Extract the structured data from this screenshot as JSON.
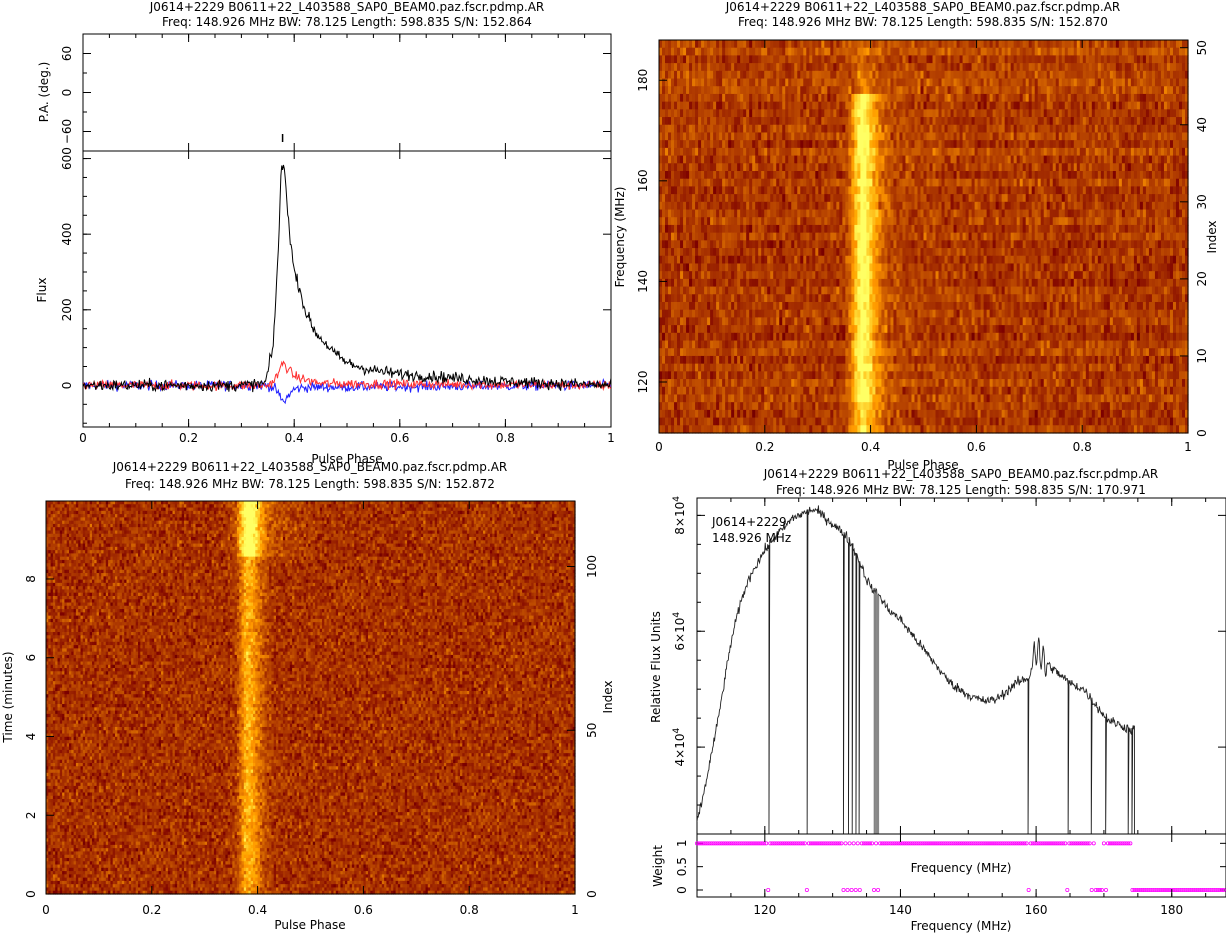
{
  "chart_data": [
    {
      "id": "profile",
      "type": "line",
      "title": "J0614+2229  B0611+22_L403588_SAP0_BEAM0.paz.fscr.pdmp.AR",
      "subtitle": "Freq: 148.926 MHz BW: 78.125 Length: 598.835 S/N: 152.864",
      "xlabel": "Pulse Phase",
      "xlim": [
        0,
        1
      ],
      "xticks": [
        "0",
        "0.2",
        "0.4",
        "0.6",
        "0.8",
        "1"
      ],
      "pa": {
        "ylabel": "P.A. (deg.)",
        "ylim": [
          -90,
          90
        ],
        "yticks": [
          "−60",
          "0",
          "60"
        ],
        "points": [
          [
            0.378,
            -70
          ]
        ]
      },
      "flux": {
        "ylabel": "Flux",
        "ylim": [
          -110,
          620
        ],
        "yticks": [
          "0",
          "200",
          "400",
          "600"
        ],
        "series": [
          {
            "color": "#000000",
            "x": [
              0,
              0.3,
              0.345,
              0.36,
              0.37,
              0.375,
              0.38,
              0.385,
              0.39,
              0.4,
              0.41,
              0.42,
              0.44,
              0.46,
              0.48,
              0.5,
              0.52,
              0.55,
              0.6,
              0.7,
              0.8,
              1
            ],
            "values": [
              0,
              0,
              5,
              100,
              360,
              560,
              585,
              520,
              420,
              300,
              260,
              200,
              140,
              110,
              80,
              60,
              50,
              40,
              30,
              20,
              10,
              0
            ]
          },
          {
            "color": "#ff3030",
            "x": [
              0,
              0.35,
              0.36,
              0.37,
              0.375,
              0.38,
              0.39,
              0.4,
              0.42,
              0.45,
              1
            ],
            "values": [
              0,
              0,
              10,
              30,
              50,
              60,
              40,
              25,
              15,
              5,
              0
            ]
          },
          {
            "color": "#2020ff",
            "x": [
              0,
              0.35,
              0.365,
              0.375,
              0.38,
              0.39,
              0.4,
              0.42,
              1
            ],
            "values": [
              0,
              0,
              -10,
              -35,
              -45,
              -25,
              -10,
              -5,
              0
            ]
          }
        ]
      }
    },
    {
      "id": "freq-phase",
      "type": "heatmap",
      "title": "J0614+2229  B0611+22_L403588_SAP0_BEAM0.paz.fscr.pdmp.AR",
      "subtitle": "Freq: 148.926 MHz BW: 78.125 Length: 598.835 S/N: 152.870",
      "xlabel": "Pulse Phase",
      "ylabel": "Frequency (MHz)",
      "y2label": "Index",
      "xlim": [
        0,
        1
      ],
      "ylim": [
        109.86,
        188.0
      ],
      "y2lim": [
        0,
        51
      ],
      "xticks": [
        "0",
        "0.2",
        "0.4",
        "0.6",
        "0.8",
        "1"
      ],
      "yticks": [
        "120",
        "140",
        "160",
        "180"
      ],
      "y2ticks": [
        "0",
        "10",
        "20",
        "30",
        "40",
        "50"
      ],
      "pulse_center": 0.38,
      "bright_until_mhz": 177
    },
    {
      "id": "time-phase",
      "type": "heatmap",
      "title": "J0614+2229  B0611+22_L403588_SAP0_BEAM0.paz.fscr.pdmp.AR",
      "subtitle": "Freq: 148.926 MHz BW: 78.125 Length: 598.835 S/N: 152.872",
      "xlabel": "Pulse Phase",
      "ylabel": "Time (minutes)",
      "y2label": "Index",
      "xlim": [
        0,
        1
      ],
      "ylim": [
        0,
        9.98
      ],
      "y2lim": [
        0,
        120
      ],
      "xticks": [
        "0",
        "0.2",
        "0.4",
        "0.6",
        "0.8",
        "1"
      ],
      "yticks": [
        "0",
        "2",
        "4",
        "6",
        "8"
      ],
      "y2ticks": [
        "0",
        "50",
        "100"
      ],
      "pulse_center": 0.38,
      "flare_minutes": [
        8.55,
        9.98
      ]
    },
    {
      "id": "bandpass",
      "type": "line",
      "title": "J0614+2229  B0611+22_L403588_SAP0_BEAM0.paz.fscr.pdmp.AR",
      "subtitle": "Freq: 148.926 MHz BW: 78.125 Length: 598.835 S/N: 170.971",
      "xlabel": "Frequency (MHz)",
      "xlim": [
        110,
        188
      ],
      "xticks": [
        "120",
        "140",
        "160",
        "180"
      ],
      "annotation": [
        "J0614+2229",
        "148.926  MHz"
      ],
      "spectrum": {
        "ylabel": "Relative Flux Units",
        "ylim": [
          25000,
          83000
        ],
        "yticks": [
          {
            "value": 40000,
            "mant": "4×10",
            "exp": "4"
          },
          {
            "value": 60000,
            "mant": "6×10",
            "exp": "4"
          },
          {
            "value": 80000,
            "mant": "8×10",
            "exp": "4"
          }
        ],
        "freq": [
          110,
          111,
          112,
          113,
          114,
          115,
          116,
          117,
          118,
          119,
          120,
          121,
          122,
          123,
          124,
          125,
          126,
          127,
          128,
          129,
          130,
          131,
          132,
          133,
          134,
          135,
          136,
          137,
          138,
          139,
          140,
          141,
          142,
          143,
          144,
          145,
          146,
          147,
          148,
          149,
          150,
          151,
          152,
          153,
          154,
          155,
          156,
          157,
          158,
          159,
          160,
          161,
          162,
          163,
          164,
          165,
          166,
          167,
          168,
          169,
          170,
          171,
          172,
          173,
          174
        ],
        "values": [
          27000,
          32000,
          38000,
          44000,
          51000,
          58000,
          63000,
          67000,
          70000,
          72000,
          74000,
          75500,
          77000,
          78000,
          79500,
          80000,
          80500,
          81000,
          80500,
          79500,
          78500,
          77500,
          76500,
          74500,
          72000,
          69000,
          67000,
          66000,
          64000,
          63000,
          62000,
          60500,
          59000,
          57500,
          56000,
          54500,
          53000,
          51500,
          50500,
          49800,
          49000,
          48500,
          48000,
          48000,
          48200,
          49000,
          50000,
          51000,
          51500,
          52000,
          57000,
          55000,
          54000,
          53000,
          52000,
          51000,
          50500,
          50000,
          48500,
          47000,
          45500,
          44500,
          44000,
          43500,
          43000
        ],
        "dropouts": [
          120.6,
          126.2,
          131.6,
          132.3,
          132.9,
          133.4,
          133.9,
          136.2,
          136.7,
          158.8,
          164.7,
          168.1,
          170.3,
          173.6,
          174.1
        ],
        "end_mhz": 174.5
      },
      "weight": {
        "ylabel": "Weight",
        "ylim": [
          -0.15,
          1.2
        ],
        "yticks": [
          "0",
          "0.5",
          "1"
        ],
        "zero_freqs": [
          120.6,
          126.2,
          131.6,
          132.3,
          132.9,
          133.4,
          133.9,
          136.2,
          136.7,
          158.8,
          164.7,
          168.1,
          168.7,
          169.0,
          169.3,
          169.6,
          170.3,
          174.2
        ],
        "zero_from_mhz": 174.5,
        "marker_color": "#ff00ff"
      }
    }
  ]
}
